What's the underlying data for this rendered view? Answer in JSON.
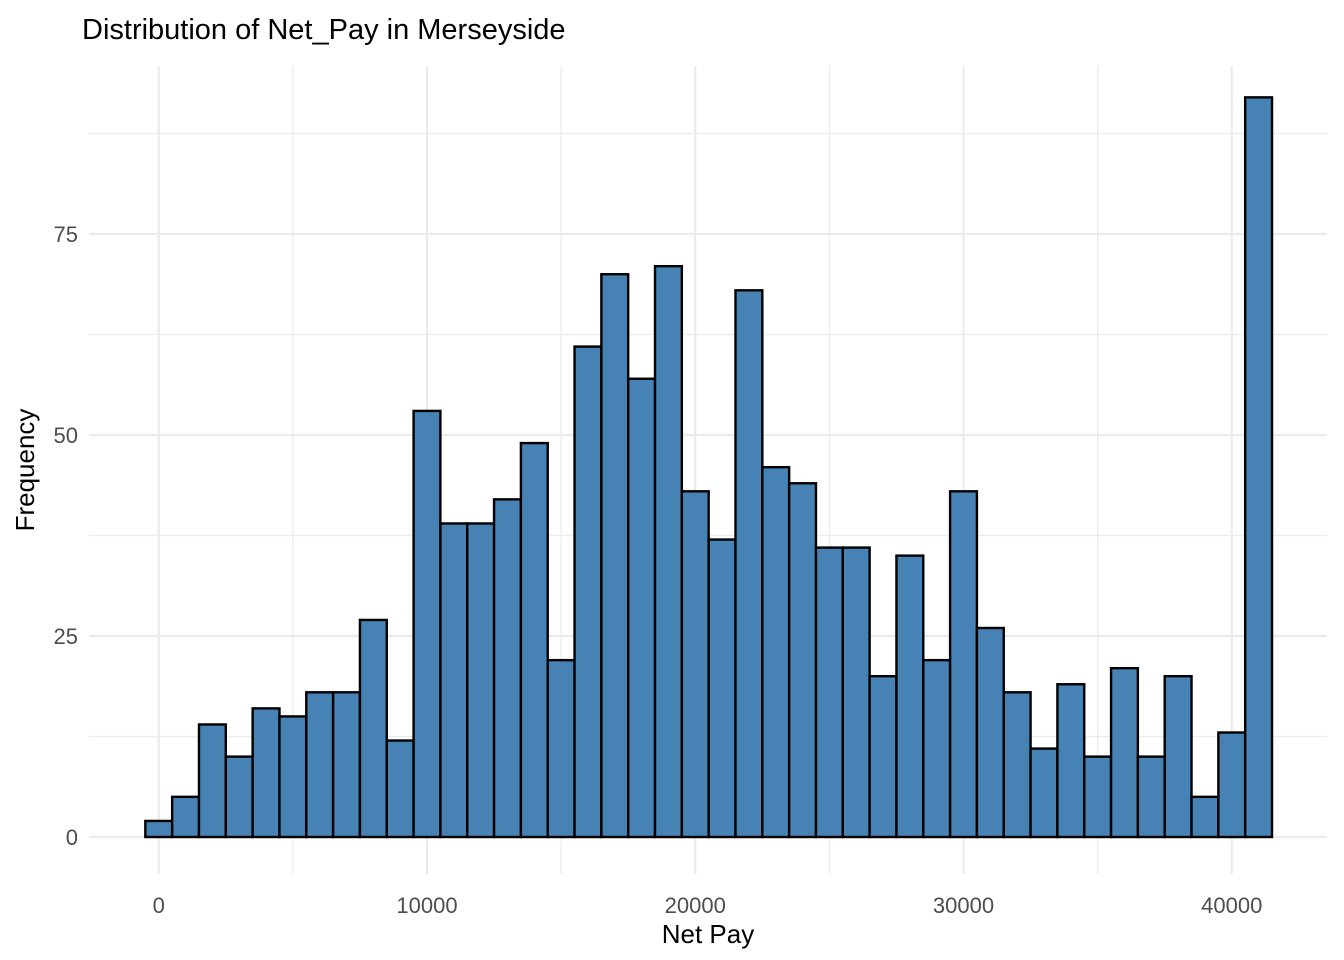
{
  "figure": {
    "background": "#FFFFFF"
  },
  "chart_data": {
    "type": "bar",
    "subtype": "histogram",
    "title": "Distribution of Net_Pay in Merseyside",
    "xlabel": "Net Pay",
    "ylabel": "Frequency",
    "legend": "none",
    "grid": "major+minor",
    "binwidth": 1000,
    "bin_centers": [
      0,
      1000,
      2000,
      3000,
      4000,
      5000,
      6000,
      7000,
      8000,
      9000,
      10000,
      11000,
      12000,
      13000,
      14000,
      15000,
      16000,
      17000,
      18000,
      19000,
      20000,
      21000,
      22000,
      23000,
      24000,
      25000,
      26000,
      27000,
      28000,
      29000,
      30000,
      31000,
      32000,
      33000,
      34000,
      35000,
      36000,
      37000,
      38000,
      39000,
      40000,
      41000
    ],
    "values": [
      2,
      5,
      14,
      10,
      16,
      15,
      18,
      18,
      27,
      12,
      53,
      39,
      39,
      42,
      49,
      22,
      61,
      70,
      57,
      71,
      43,
      37,
      68,
      46,
      44,
      36,
      36,
      20,
      35,
      22,
      43,
      26,
      18,
      11,
      19,
      10,
      21,
      10,
      20,
      5,
      13,
      92
    ],
    "x_ticks": [
      0,
      10000,
      20000,
      30000,
      40000
    ],
    "x_minor_ticks": [
      5000,
      15000,
      25000,
      35000
    ],
    "y_ticks": [
      0,
      25,
      50,
      75
    ],
    "y_minor_ticks": [
      12.5,
      37.5,
      62.5,
      87.5
    ],
    "xlim": [
      -2600,
      43550
    ],
    "ylim": [
      -4.6,
      95.9
    ],
    "colors": {
      "bar_fill": "#4682B4",
      "bar_stroke": "#000000",
      "grid": "#EBEBEB",
      "tick_label": "#4D4D4D",
      "axis_title": "#000000",
      "title": "#000000"
    }
  }
}
